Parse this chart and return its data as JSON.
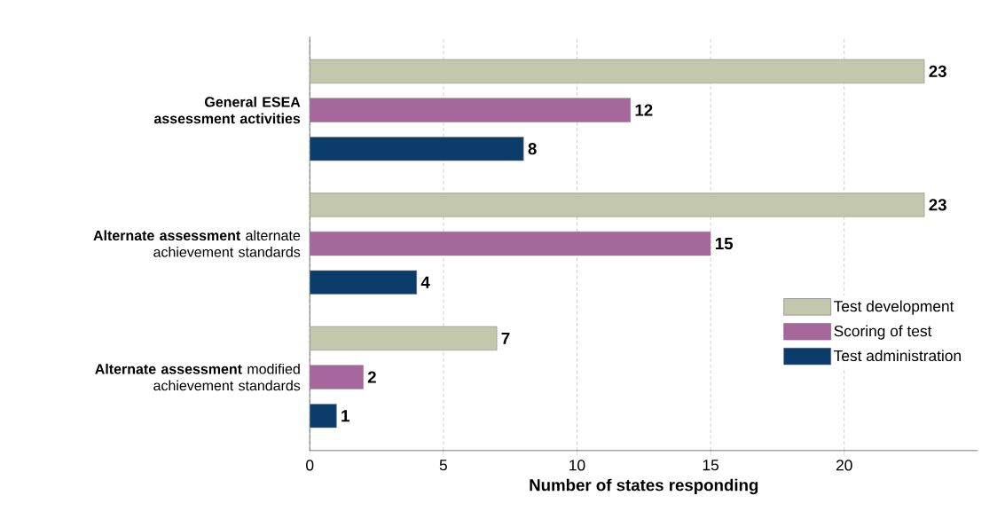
{
  "chart_data": {
    "type": "bar",
    "orientation": "horizontal",
    "xlabel": "Number of states responding",
    "categories": [
      "**General ESEA assessment activities**",
      "**Alternate assessment** alternate achievement standards",
      "**Alternate assessment** modified achievement standards"
    ],
    "series": [
      {
        "name": "Test development",
        "color": "#c3c8ad",
        "values": [
          23,
          23,
          7
        ]
      },
      {
        "name": "Scoring of test",
        "color": "#a5679c",
        "values": [
          12,
          15,
          2
        ]
      },
      {
        "name": "Test administration",
        "color": "#0b3c6a",
        "values": [
          8,
          4,
          1
        ]
      }
    ],
    "xlim": [
      0,
      25
    ],
    "xticks": [
      0,
      5,
      10,
      15,
      20
    ],
    "grid": "x",
    "legend": "bottom right",
    "data_labels": true
  }
}
